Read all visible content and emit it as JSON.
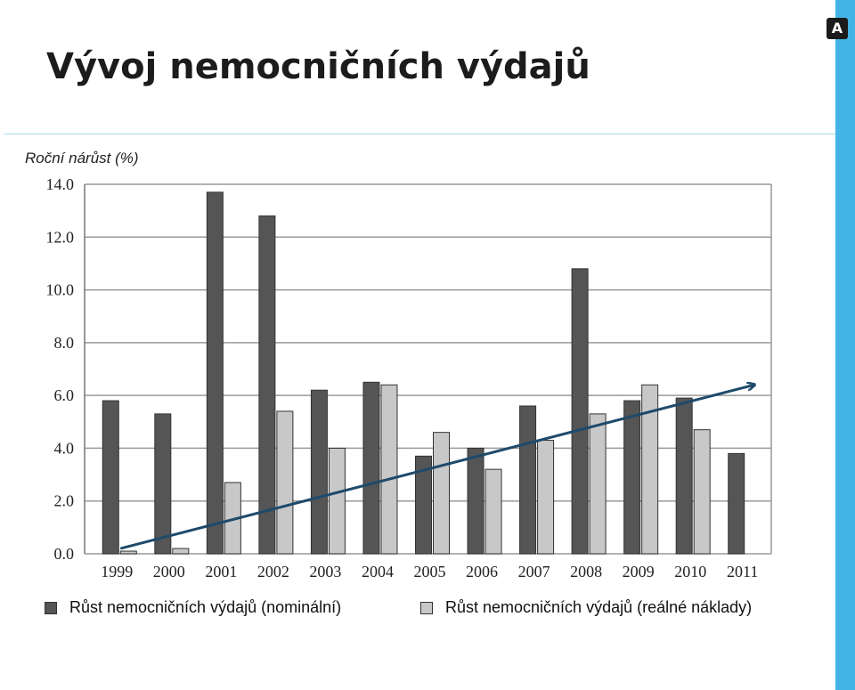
{
  "page": {
    "title": "Vývoj nemocničních výdajů",
    "subtitle": "Roční nárůst (%)"
  },
  "colors": {
    "accent_bar": "#43b4e6",
    "nominal": "#555555",
    "real": "#c8c8c8",
    "trend": "#1e4a6b"
  },
  "icons": {
    "logo": "a-logo-icon"
  },
  "chart_data": {
    "type": "bar",
    "categories": [
      "1999",
      "2000",
      "2001",
      "2002",
      "2003",
      "2004",
      "2005",
      "2006",
      "2007",
      "2008",
      "2009",
      "2010",
      "2011"
    ],
    "series": [
      {
        "name": "Růst nemocničních výdajů (nominální)",
        "values": [
          5.8,
          5.3,
          13.7,
          12.8,
          6.2,
          6.5,
          3.7,
          4.0,
          5.6,
          10.8,
          5.8,
          5.9,
          3.8
        ]
      },
      {
        "name": "Růst nemocničních výdajů (reálné náklady)",
        "values": [
          0.1,
          0.2,
          2.7,
          5.4,
          4.0,
          6.4,
          4.6,
          3.2,
          4.3,
          5.3,
          6.4,
          4.7,
          null
        ]
      }
    ],
    "ylim": [
      0,
      14
    ],
    "yticks": [
      "0.0",
      "2.0",
      "4.0",
      "6.0",
      "8.0",
      "10.0",
      "12.0",
      "14.0"
    ],
    "grid": true,
    "legend": "bottom",
    "annotations": [
      {
        "type": "trend-arrow",
        "from": [
          "1999",
          0.2
        ],
        "to": [
          "2011",
          6.4
        ]
      }
    ]
  }
}
